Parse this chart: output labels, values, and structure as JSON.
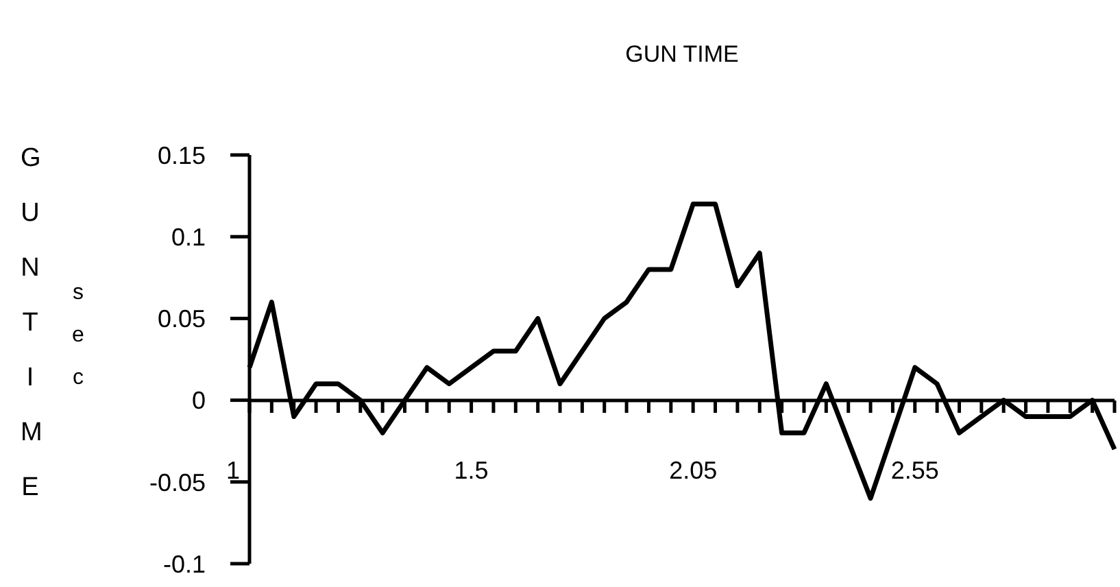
{
  "chart_data": {
    "type": "line",
    "title": "GUN TIME",
    "ylabel": "GUN TIME",
    "annotations": [
      "sec"
    ],
    "categories": [
      "1",
      null,
      null,
      null,
      null,
      null,
      null,
      null,
      null,
      null,
      "1.5",
      null,
      null,
      null,
      null,
      null,
      null,
      null,
      null,
      null,
      "2.05",
      null,
      null,
      null,
      null,
      null,
      null,
      null,
      null,
      null,
      "2.55",
      null,
      null,
      null,
      null,
      null,
      null,
      null,
      null,
      null
    ],
    "series": [
      {
        "color": "#000000",
        "values": [
          0.02,
          0.06,
          -0.01,
          0.01,
          0.01,
          0,
          -0.02,
          0,
          0.02,
          0.01,
          0.02,
          0.03,
          0.03,
          0.05,
          0.01,
          0.03,
          0.05,
          0.06,
          0.08,
          0.08,
          0.12,
          0.12,
          0.07,
          0.09,
          -0.02,
          -0.02,
          0.01,
          -0.025,
          -0.06,
          -0.02,
          0.02,
          0.01,
          -0.02,
          -0.01,
          0,
          -0.01,
          -0.01,
          -0.01,
          0,
          -0.03
        ]
      }
    ],
    "ylim": [
      -0.1,
      0.15
    ],
    "yticks": [
      -0.1,
      -0.05,
      0,
      0.05,
      0.1,
      0.15
    ],
    "grid": false,
    "marker": "none",
    "line_style": "solid"
  }
}
